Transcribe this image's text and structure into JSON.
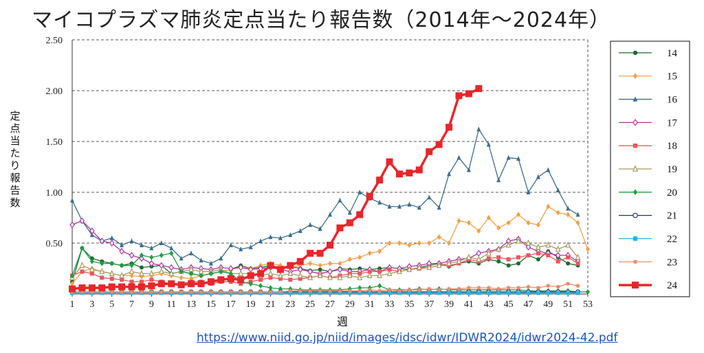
{
  "title": "マイコプラズマ肺炎定点当たり報告数（2014年～2024年）",
  "source_url": "https://www.niid.go.jp/niid/images/idsc/idwr/IDWR2024/idwr2024-42.pdf",
  "chart_data": {
    "type": "line",
    "xlabel": "週",
    "ylabel": "定点当たり報告数",
    "x_ticks": [
      1,
      3,
      5,
      7,
      9,
      11,
      13,
      15,
      17,
      19,
      21,
      23,
      25,
      27,
      29,
      31,
      33,
      35,
      37,
      39,
      41,
      43,
      45,
      47,
      49,
      51,
      53
    ],
    "xlim": [
      1,
      53
    ],
    "y_ticks": [
      "0.50",
      "1.00",
      "1.50",
      "2.00",
      "2.50"
    ],
    "ylim": [
      0,
      2.5
    ],
    "grid": "horizontal-dashed",
    "legend_position": "right",
    "series": [
      {
        "name": "14",
        "color": "#1e6b30",
        "marker": "circle-filled",
        "values": [
          0.12,
          0.45,
          0.35,
          0.32,
          0.3,
          0.28,
          0.3,
          0.26,
          0.27,
          0.28,
          0.2,
          0.22,
          0.2,
          0.18,
          0.2,
          0.22,
          0.24,
          0.28,
          0.25,
          0.26,
          0.28,
          0.26,
          0.27,
          0.25,
          0.23,
          0.24,
          0.22,
          0.25,
          0.24,
          0.25,
          0.24,
          0.25,
          0.26,
          0.25,
          0.24,
          0.26,
          0.28,
          0.3,
          0.27,
          0.3,
          0.32,
          0.3,
          0.34,
          0.32,
          0.28,
          0.3,
          0.38,
          0.34,
          0.42,
          0.36,
          0.3,
          0.28
        ]
      },
      {
        "name": "15",
        "color": "#f0a14a",
        "marker": "diamond-filled",
        "values": [
          0.1,
          0.22,
          0.25,
          0.22,
          0.2,
          0.18,
          0.18,
          0.17,
          0.18,
          0.2,
          0.18,
          0.16,
          0.15,
          0.18,
          0.2,
          0.22,
          0.24,
          0.26,
          0.25,
          0.28,
          0.3,
          0.28,
          0.26,
          0.28,
          0.3,
          0.28,
          0.3,
          0.3,
          0.34,
          0.36,
          0.4,
          0.42,
          0.5,
          0.5,
          0.48,
          0.5,
          0.5,
          0.56,
          0.5,
          0.72,
          0.7,
          0.62,
          0.75,
          0.65,
          0.7,
          0.78,
          0.7,
          0.68,
          0.86,
          0.8,
          0.78,
          0.7,
          0.44
        ]
      },
      {
        "name": "16",
        "color": "#3c6e8f",
        "marker": "triangle-filled",
        "values": [
          0.92,
          0.72,
          0.58,
          0.52,
          0.55,
          0.48,
          0.52,
          0.48,
          0.45,
          0.5,
          0.45,
          0.35,
          0.4,
          0.33,
          0.3,
          0.35,
          0.48,
          0.44,
          0.46,
          0.52,
          0.56,
          0.55,
          0.58,
          0.62,
          0.68,
          0.64,
          0.78,
          0.92,
          0.8,
          1.0,
          0.94,
          0.9,
          0.86,
          0.86,
          0.88,
          0.85,
          0.95,
          0.85,
          1.18,
          1.34,
          1.22,
          1.62,
          1.47,
          1.12,
          1.34,
          1.33,
          1.0,
          1.15,
          1.22,
          1.02,
          0.84,
          0.78
        ]
      },
      {
        "name": "17",
        "color": "#b0359e",
        "marker": "diamond-open",
        "values": [
          0.68,
          0.72,
          0.62,
          0.52,
          0.5,
          0.42,
          0.38,
          0.35,
          0.3,
          0.28,
          0.26,
          0.24,
          0.26,
          0.25,
          0.24,
          0.26,
          0.25,
          0.26,
          0.24,
          0.25,
          0.26,
          0.24,
          0.22,
          0.24,
          0.22,
          0.2,
          0.22,
          0.24,
          0.22,
          0.22,
          0.24,
          0.22,
          0.26,
          0.25,
          0.27,
          0.28,
          0.3,
          0.3,
          0.32,
          0.34,
          0.35,
          0.4,
          0.42,
          0.44,
          0.52,
          0.54,
          0.46,
          0.42,
          0.4,
          0.38,
          0.38,
          0.32
        ]
      },
      {
        "name": "18",
        "color": "#e8575e",
        "marker": "square-filled",
        "values": [
          0.18,
          0.22,
          0.2,
          0.16,
          0.15,
          0.14,
          0.12,
          0.12,
          0.14,
          0.12,
          0.1,
          0.1,
          0.12,
          0.12,
          0.1,
          0.12,
          0.12,
          0.1,
          0.12,
          0.14,
          0.16,
          0.15,
          0.14,
          0.15,
          0.16,
          0.18,
          0.16,
          0.18,
          0.2,
          0.2,
          0.22,
          0.22,
          0.24,
          0.22,
          0.24,
          0.25,
          0.26,
          0.28,
          0.28,
          0.3,
          0.34,
          0.32,
          0.35,
          0.36,
          0.34,
          0.36,
          0.38,
          0.4,
          0.38,
          0.32,
          0.36,
          0.3
        ]
      },
      {
        "name": "19",
        "color": "#a89a62",
        "marker": "triangle-open",
        "values": [
          0.16,
          0.28,
          0.24,
          0.22,
          0.2,
          0.18,
          0.22,
          0.2,
          0.2,
          0.22,
          0.2,
          0.22,
          0.24,
          0.22,
          0.22,
          0.24,
          0.2,
          0.2,
          0.2,
          0.18,
          0.2,
          0.18,
          0.2,
          0.18,
          0.16,
          0.18,
          0.16,
          0.16,
          0.18,
          0.16,
          0.18,
          0.18,
          0.2,
          0.22,
          0.24,
          0.26,
          0.26,
          0.28,
          0.3,
          0.32,
          0.36,
          0.34,
          0.4,
          0.44,
          0.48,
          0.52,
          0.5,
          0.46,
          0.48,
          0.44,
          0.48,
          0.36
        ]
      },
      {
        "name": "20",
        "color": "#1f9e44",
        "marker": "diamond-filled",
        "values": [
          0.18,
          0.45,
          0.32,
          0.3,
          0.3,
          0.28,
          0.28,
          0.38,
          0.36,
          0.38,
          0.4,
          0.22,
          0.2,
          0.18,
          0.2,
          0.22,
          0.2,
          0.12,
          0.1,
          0.08,
          0.06,
          0.05,
          0.05,
          0.04,
          0.04,
          0.04,
          0.04,
          0.04,
          0.05,
          0.06,
          0.06,
          0.08,
          0.04,
          0.04,
          0.04,
          0.05,
          0.04,
          0.05,
          0.04,
          0.04,
          0.04,
          0.04,
          0.04,
          0.04,
          0.04,
          0.04,
          0.03,
          0.03,
          0.03,
          0.03,
          0.03,
          0.02,
          0.02
        ]
      },
      {
        "name": "21",
        "color": "#1d3557",
        "marker": "circle-open",
        "values": [
          0.02,
          0.02,
          0.02,
          0.02,
          0.02,
          0.02,
          0.02,
          0.02,
          0.02,
          0.02,
          0.02,
          0.02,
          0.02,
          0.02,
          0.02,
          0.02,
          0.02,
          0.02,
          0.02,
          0.02,
          0.02,
          0.02,
          0.02,
          0.02,
          0.02,
          0.02,
          0.02,
          0.02,
          0.02,
          0.02,
          0.02,
          0.02,
          0.02,
          0.02,
          0.02,
          0.02,
          0.02,
          0.02,
          0.02,
          0.02,
          0.02,
          0.02,
          0.02,
          0.02,
          0.02,
          0.02,
          0.02,
          0.02,
          0.02,
          0.02,
          0.02,
          0.02
        ]
      },
      {
        "name": "22",
        "color": "#2ab3e6",
        "marker": "square-filled",
        "values": [
          0.01,
          0.01,
          0.01,
          0.01,
          0.01,
          0.01,
          0.01,
          0.01,
          0.01,
          0.01,
          0.01,
          0.01,
          0.01,
          0.01,
          0.01,
          0.01,
          0.01,
          0.01,
          0.01,
          0.01,
          0.01,
          0.01,
          0.01,
          0.01,
          0.01,
          0.01,
          0.01,
          0.01,
          0.01,
          0.01,
          0.01,
          0.01,
          0.01,
          0.01,
          0.01,
          0.01,
          0.01,
          0.01,
          0.01,
          0.01,
          0.01,
          0.01,
          0.01,
          0.01,
          0.01,
          0.01,
          0.01,
          0.01,
          0.01,
          0.01,
          0.01,
          0.01
        ]
      },
      {
        "name": "23",
        "color": "#e98a6a",
        "marker": "asterisk",
        "values": [
          0.02,
          0.02,
          0.02,
          0.02,
          0.02,
          0.02,
          0.02,
          0.02,
          0.02,
          0.02,
          0.02,
          0.02,
          0.02,
          0.02,
          0.02,
          0.02,
          0.02,
          0.02,
          0.02,
          0.02,
          0.02,
          0.02,
          0.03,
          0.03,
          0.03,
          0.03,
          0.03,
          0.03,
          0.03,
          0.03,
          0.04,
          0.03,
          0.04,
          0.03,
          0.04,
          0.04,
          0.05,
          0.04,
          0.05,
          0.05,
          0.06,
          0.06,
          0.06,
          0.05,
          0.06,
          0.06,
          0.07,
          0.06,
          0.08,
          0.07,
          0.1,
          0.08
        ]
      },
      {
        "name": "24",
        "color": "#e8262a",
        "marker": "square-filled",
        "bold": true,
        "values": [
          0.05,
          0.06,
          0.06,
          0.06,
          0.07,
          0.07,
          0.07,
          0.07,
          0.08,
          0.1,
          0.1,
          0.09,
          0.1,
          0.1,
          0.12,
          0.14,
          0.15,
          0.14,
          0.18,
          0.2,
          0.28,
          0.24,
          0.28,
          0.32,
          0.4,
          0.4,
          0.48,
          0.65,
          0.7,
          0.78,
          0.96,
          1.12,
          1.3,
          1.18,
          1.19,
          1.22,
          1.4,
          1.47,
          1.64,
          1.95,
          1.97,
          2.02
        ]
      }
    ]
  }
}
